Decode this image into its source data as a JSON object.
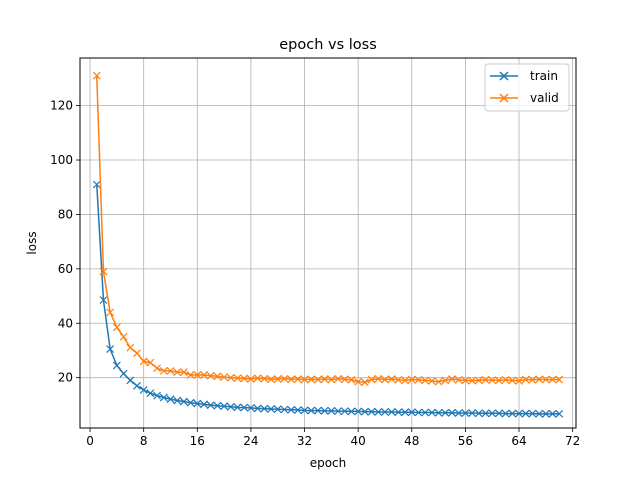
{
  "chart_data": {
    "type": "line",
    "title": "epoch vs loss",
    "xlabel": "epoch",
    "ylabel": "loss",
    "xlim": [
      -1.5,
      72.5
    ],
    "ylim": [
      1.5,
      137.5
    ],
    "xticks": [
      0,
      8,
      16,
      24,
      32,
      40,
      48,
      56,
      64,
      72
    ],
    "yticks": [
      20,
      40,
      60,
      80,
      100,
      120
    ],
    "grid": true,
    "legend_position": "top-right",
    "marker": "x",
    "x": [
      1,
      2,
      3,
      4,
      5,
      6,
      7,
      8,
      9,
      10,
      11,
      12,
      13,
      14,
      15,
      16,
      17,
      18,
      19,
      20,
      21,
      22,
      23,
      24,
      25,
      26,
      27,
      28,
      29,
      30,
      31,
      32,
      33,
      34,
      35,
      36,
      37,
      38,
      39,
      40,
      41,
      42,
      43,
      44,
      45,
      46,
      47,
      48,
      49,
      50,
      51,
      52,
      53,
      54,
      55,
      56,
      57,
      58,
      59,
      60,
      61,
      62,
      63,
      64,
      65,
      66,
      67,
      68,
      69,
      70
    ],
    "series": [
      {
        "name": "train",
        "color": "#1f77b4",
        "values": [
          91,
          48.5,
          30.5,
          24.5,
          21.5,
          19,
          17,
          15.5,
          14.3,
          13.4,
          12.7,
          12.1,
          11.6,
          11.2,
          10.8,
          10.5,
          10.2,
          9.9,
          9.7,
          9.5,
          9.3,
          9.1,
          9.0,
          8.9,
          8.7,
          8.6,
          8.5,
          8.4,
          8.3,
          8.2,
          8.1,
          8.0,
          7.9,
          7.9,
          7.8,
          7.8,
          7.7,
          7.7,
          7.6,
          7.6,
          7.5,
          7.5,
          7.4,
          7.4,
          7.4,
          7.3,
          7.3,
          7.3,
          7.2,
          7.2,
          7.2,
          7.1,
          7.1,
          7.1,
          7.0,
          7.0,
          7.0,
          6.9,
          6.9,
          6.9,
          6.9,
          6.8,
          6.8,
          6.8,
          6.8,
          6.8,
          6.7,
          6.7,
          6.7,
          6.7
        ]
      },
      {
        "name": "valid",
        "color": "#ff7f0e",
        "values": [
          131,
          59,
          44,
          38.5,
          35,
          31,
          29,
          26,
          25.5,
          23.5,
          22.5,
          22.5,
          22,
          22,
          21,
          21,
          21,
          20.7,
          20.5,
          20.2,
          20,
          19.8,
          19.7,
          19.5,
          19.8,
          19.6,
          19.4,
          19.5,
          19.6,
          19.4,
          19.5,
          19.3,
          19.4,
          19.3,
          19.5,
          19.3,
          19.6,
          19.4,
          19.2,
          18.5,
          18.3,
          19.3,
          19.6,
          19.3,
          19.5,
          19.2,
          19.0,
          19.3,
          19.2,
          19.0,
          18.8,
          18.5,
          19.0,
          19.5,
          19.2,
          19.0,
          18.9,
          19.0,
          19.2,
          19.1,
          19.0,
          19.2,
          19.0,
          18.8,
          19.3,
          19.2,
          19.4,
          19.3,
          19.3,
          19.3
        ]
      }
    ]
  }
}
